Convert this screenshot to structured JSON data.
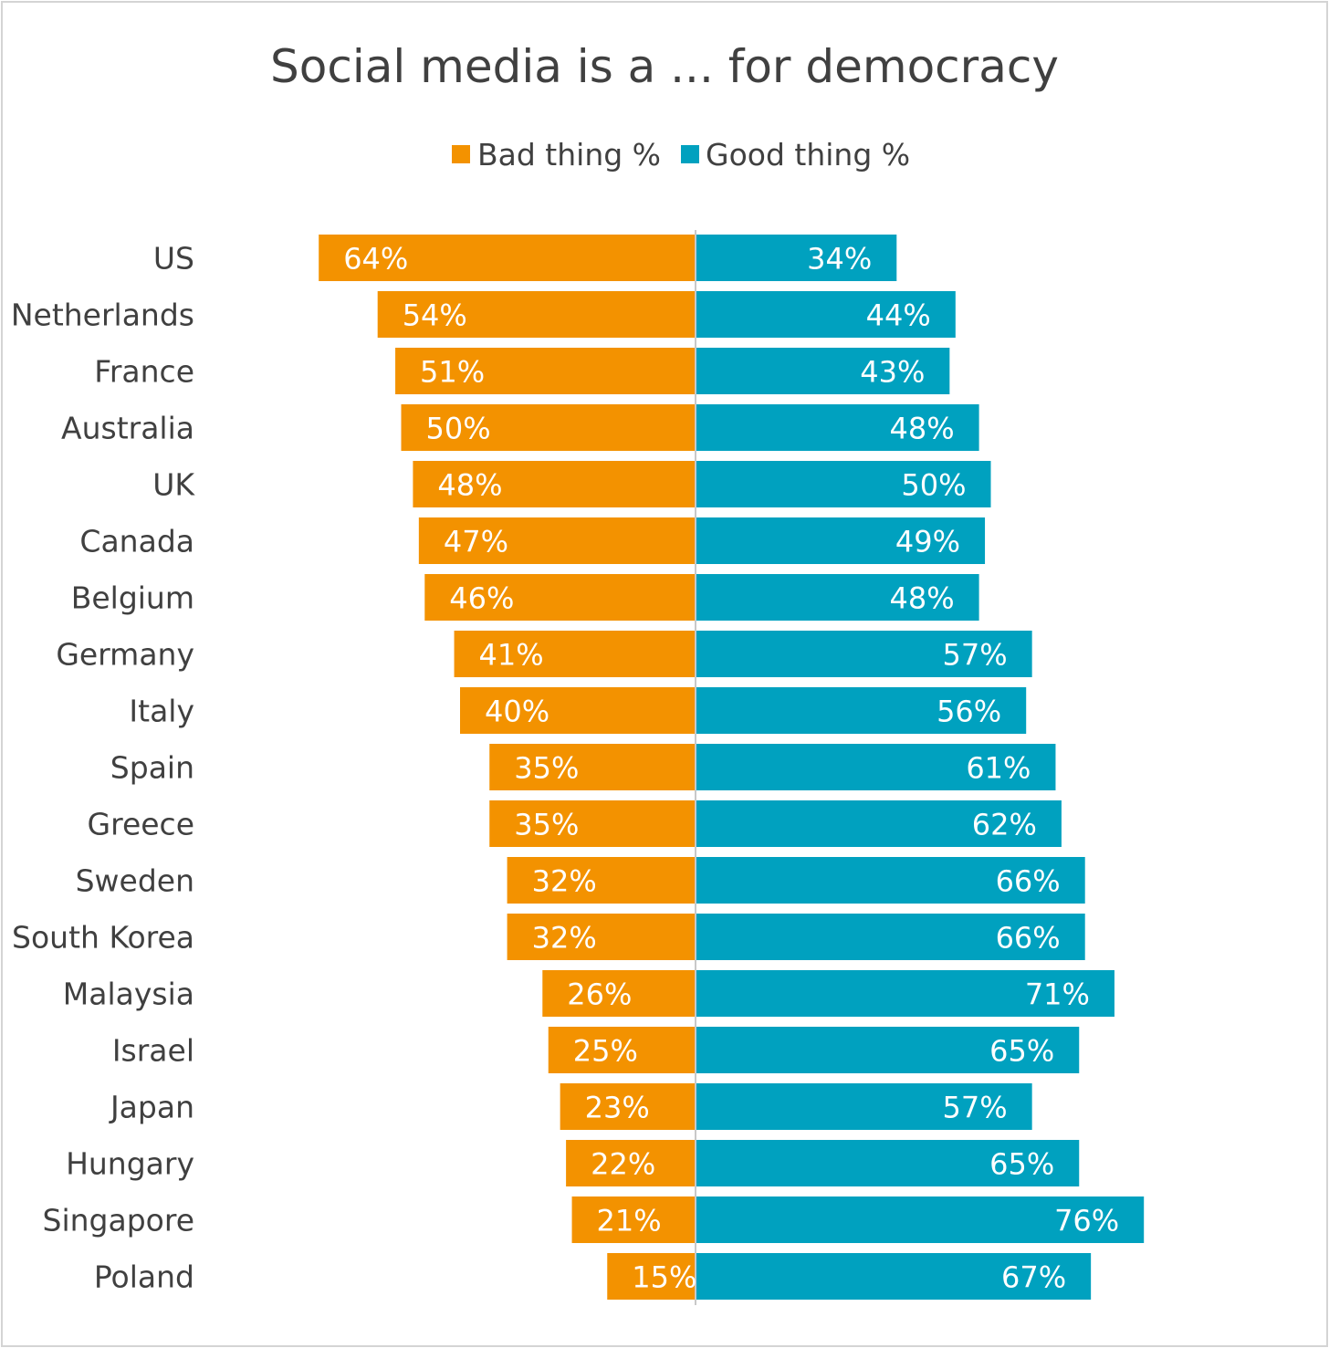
{
  "chart_data": {
    "type": "bar",
    "orientation": "horizontal-diverging",
    "title": "Social media is a ... for democracy",
    "legend": {
      "placement": "top-center"
    },
    "categories": [
      "US",
      "Netherlands",
      "France",
      "Australia",
      "UK",
      "Canada",
      "Belgium",
      "Germany",
      "Italy",
      "Spain",
      "Greece",
      "Sweden",
      "South Korea",
      "Malaysia",
      "Israel",
      "Japan",
      "Hungary",
      "Singapore",
      "Poland"
    ],
    "series": [
      {
        "name": "Bad thing %",
        "color": "#F39200",
        "direction": "left",
        "values": [
          64,
          54,
          51,
          50,
          48,
          47,
          46,
          41,
          40,
          35,
          35,
          32,
          32,
          26,
          25,
          23,
          22,
          21,
          15
        ],
        "labels": [
          "64%",
          "54%",
          "51%",
          "50%",
          "48%",
          "47%",
          "46%",
          "41%",
          "40%",
          "35%",
          "35%",
          "32%",
          "32%",
          "26%",
          "25%",
          "23%",
          "22%",
          "21%",
          "15%"
        ]
      },
      {
        "name": "Good thing %",
        "color": "#00A1BF",
        "direction": "right",
        "values": [
          34,
          44,
          43,
          48,
          50,
          49,
          48,
          57,
          56,
          61,
          62,
          66,
          66,
          71,
          65,
          57,
          65,
          76,
          67
        ],
        "labels": [
          "34%",
          "44%",
          "43%",
          "48%",
          "50%",
          "49%",
          "48%",
          "57%",
          "56%",
          "61%",
          "62%",
          "66%",
          "66%",
          "71%",
          "65%",
          "57%",
          "65%",
          "76%",
          "67%"
        ]
      }
    ],
    "axis_line_color": "#C8C8C8",
    "grid": false
  }
}
